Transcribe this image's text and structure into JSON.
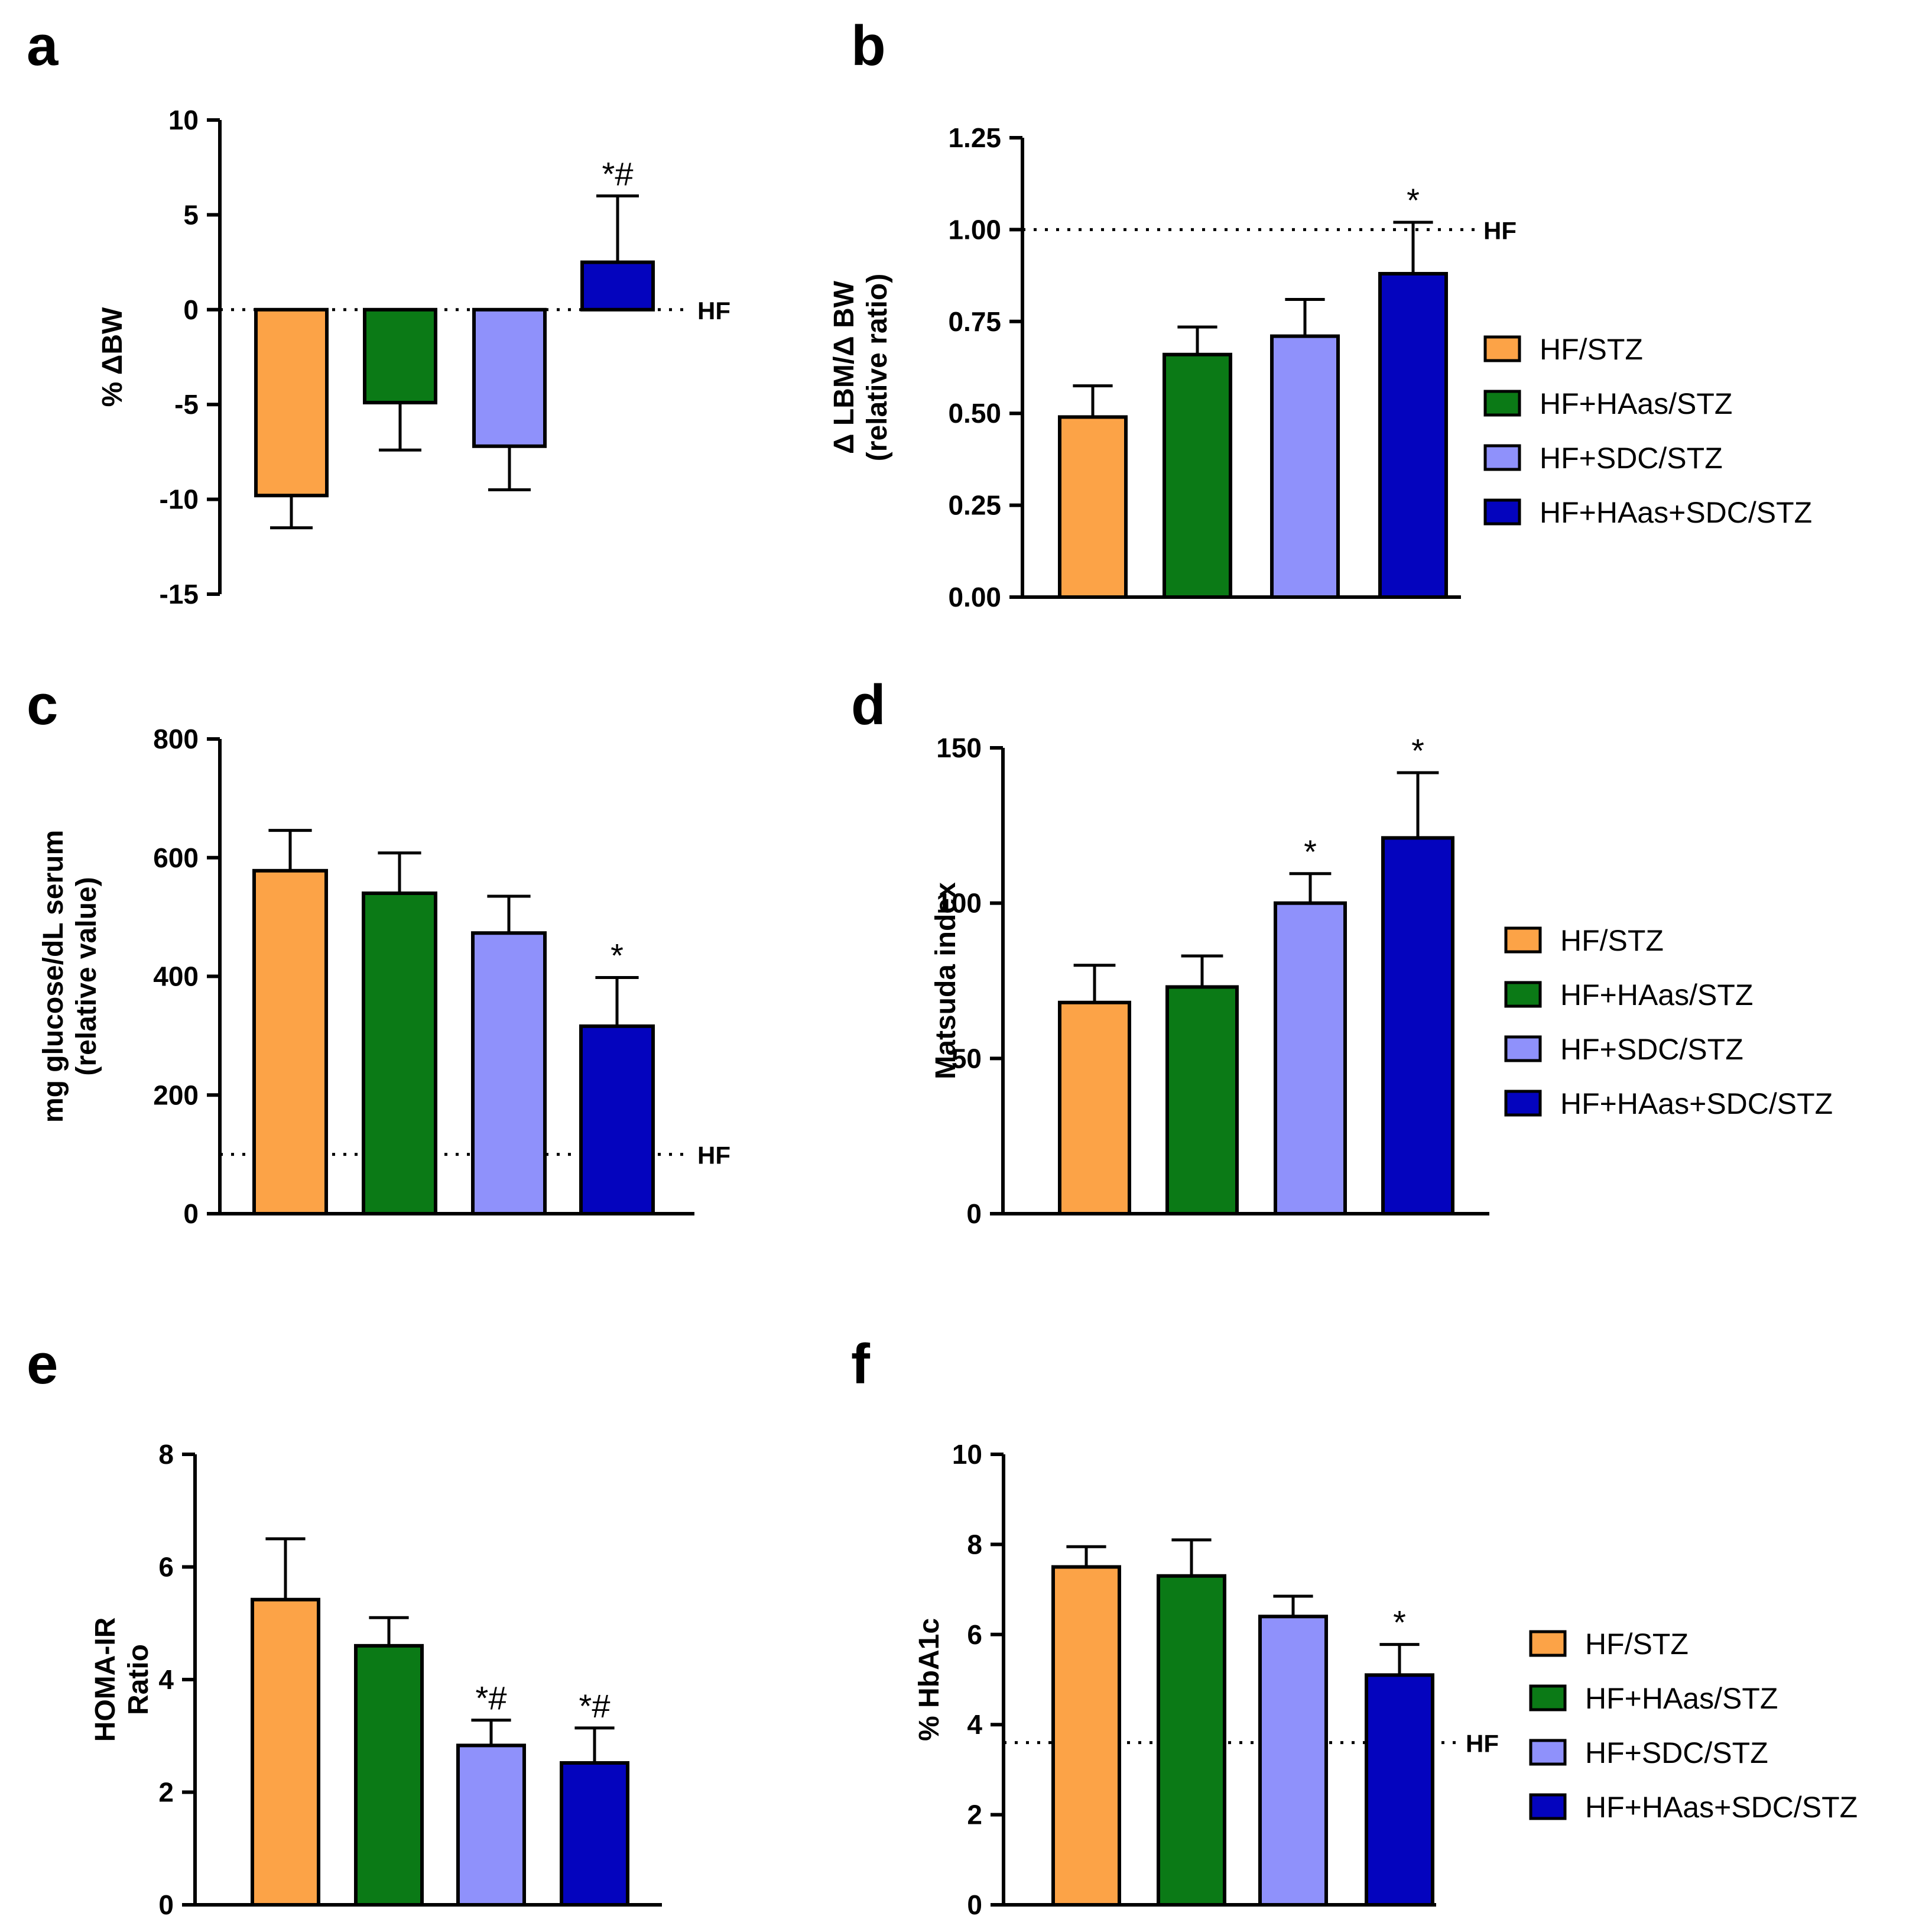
{
  "groups": [
    "HF/STZ",
    "HF+HAas/STZ",
    "HF+SDC/STZ",
    "HF+HAas+SDC/STZ"
  ],
  "colors": {
    "HF/STZ": "#FCA347",
    "HF+HAas/STZ": "#0B7A16",
    "HF+SDC/STZ": "#8F91FB",
    "HF+HAas+SDC/STZ": "#0404BE"
  },
  "chart_data": [
    {
      "id": "a",
      "type": "bar",
      "title": "",
      "panel_label": "a",
      "ylabel": [
        "% ΔBW"
      ],
      "categories": [
        "HF/STZ",
        "HF+HAas/STZ",
        "HF+SDC/STZ",
        "HF+HAas+SDC/STZ"
      ],
      "values": [
        -9.8,
        -4.9,
        -7.2,
        2.5
      ],
      "errors": [
        1.7,
        2.5,
        2.3,
        3.5
      ],
      "ylim": [
        -15,
        10
      ],
      "yticks": [
        "10",
        "5",
        "0",
        "-5",
        "-10",
        "-15"
      ],
      "reference": {
        "value": 0,
        "label": "HF"
      },
      "annotations": [
        "",
        "",
        "",
        "*#"
      ],
      "legend": false
    },
    {
      "id": "b",
      "type": "bar",
      "title": "",
      "panel_label": "b",
      "ylabel": [
        "Δ LBM/Δ BW",
        "(relative ratio)"
      ],
      "categories": [
        "HF/STZ",
        "HF+HAas/STZ",
        "HF+SDC/STZ",
        "HF+HAas+SDC/STZ"
      ],
      "values": [
        0.49,
        0.66,
        0.71,
        0.88
      ],
      "errors": [
        0.085,
        0.075,
        0.1,
        0.14
      ],
      "ylim": [
        0,
        1.25
      ],
      "yticks": [
        "1.25",
        "1.00",
        "0.75",
        "0.50",
        "0.25",
        "0.00"
      ],
      "reference": {
        "value": 1.0,
        "label": "HF"
      },
      "annotations": [
        "",
        "",
        "",
        "*"
      ],
      "legend": true
    },
    {
      "id": "c",
      "type": "bar",
      "title": "",
      "panel_label": "c",
      "ylabel": [
        "mg glucose/dL serum",
        "(relative value)"
      ],
      "categories": [
        "HF/STZ",
        "HF+HAas/STZ",
        "HF+SDC/STZ",
        "HF+HAas+SDC/STZ"
      ],
      "values": [
        578,
        540,
        473,
        316
      ],
      "errors": [
        68,
        68,
        62,
        82
      ],
      "ylim": [
        0,
        800
      ],
      "yticks": [
        "800",
        "600",
        "400",
        "200",
        "0"
      ],
      "reference": {
        "value": 100,
        "label": "HF"
      },
      "annotations": [
        "",
        "",
        "",
        "*"
      ],
      "legend": false
    },
    {
      "id": "d",
      "type": "bar",
      "title": "",
      "panel_label": "d",
      "ylabel": [
        "Matsuda index"
      ],
      "categories": [
        "HF/STZ",
        "HF+HAas/STZ",
        "HF+SDC/STZ",
        "HF+HAas+SDC/STZ"
      ],
      "values": [
        68,
        73,
        100,
        121
      ],
      "errors": [
        12,
        10,
        9.5,
        21
      ],
      "ylim": [
        0,
        150
      ],
      "yticks": [
        "150",
        "100",
        "50",
        "0"
      ],
      "reference": null,
      "annotations": [
        "",
        "",
        "*",
        "*"
      ],
      "legend": true
    },
    {
      "id": "e",
      "type": "bar",
      "title": "",
      "panel_label": "e",
      "ylabel": [
        "HOMA-IR",
        "Ratio"
      ],
      "categories": [
        "HF/STZ",
        "HF+HAas/STZ",
        "HF+SDC/STZ",
        "HF+HAas+SDC/STZ"
      ],
      "values": [
        5.42,
        4.6,
        2.83,
        2.52
      ],
      "errors": [
        1.08,
        0.5,
        0.45,
        0.62
      ],
      "ylim": [
        0,
        8
      ],
      "yticks": [
        "8",
        "6",
        "4",
        "2",
        "0"
      ],
      "reference": null,
      "annotations": [
        "",
        "",
        "*#",
        "*#"
      ],
      "legend": false
    },
    {
      "id": "f",
      "type": "bar",
      "title": "",
      "panel_label": "f",
      "ylabel": [
        "% HbA1c"
      ],
      "categories": [
        "HF/STZ",
        "HF+HAas/STZ",
        "HF+SDC/STZ",
        "HF+HAas+SDC/STZ"
      ],
      "values": [
        7.5,
        7.3,
        6.4,
        5.1
      ],
      "errors": [
        0.45,
        0.8,
        0.45,
        0.68
      ],
      "ylim": [
        0,
        10
      ],
      "yticks": [
        "10",
        "8",
        "6",
        "4",
        "2",
        "0"
      ],
      "reference": {
        "value": 3.6,
        "label": "HF"
      },
      "annotations": [
        "",
        "",
        "",
        "*"
      ],
      "legend": true
    }
  ]
}
